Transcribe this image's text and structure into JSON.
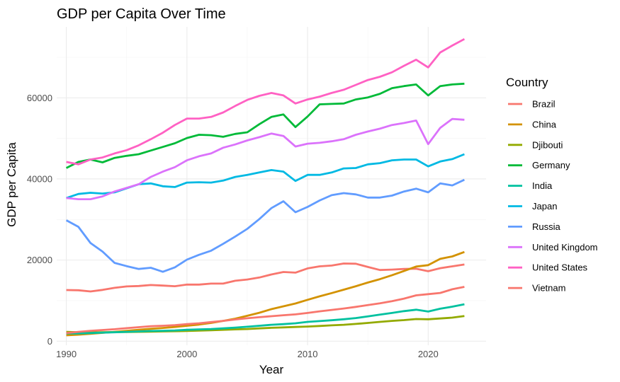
{
  "chart_data": {
    "type": "line",
    "title": "GDP per Capita Over Time",
    "xlabel": "Year",
    "ylabel": "GDP per Capita",
    "xlim": [
      1989.2,
      2024.8
    ],
    "ylim": [
      -1000,
      77500
    ],
    "x_ticks": [
      1990,
      2000,
      2010,
      2020
    ],
    "x_tick_labels": [
      "1990",
      "2000",
      "2010",
      "2020"
    ],
    "y_ticks": [
      0,
      20000,
      40000,
      60000
    ],
    "y_tick_labels": [
      "0",
      "20000",
      "40000",
      "60000"
    ],
    "grid": true,
    "legend_title": "Country",
    "legend_position": "right",
    "x": [
      1990,
      1991,
      1992,
      1993,
      1994,
      1995,
      1996,
      1997,
      1998,
      1999,
      2000,
      2001,
      2002,
      2003,
      2004,
      2005,
      2006,
      2007,
      2008,
      2009,
      2010,
      2011,
      2012,
      2013,
      2014,
      2015,
      2016,
      2017,
      2018,
      2019,
      2020,
      2021,
      2022,
      2023
    ],
    "series": [
      {
        "name": "Brazil",
        "color": "#F8766D",
        "values": [
          12600,
          12550,
          12250,
          12650,
          13150,
          13500,
          13600,
          13850,
          13700,
          13550,
          13950,
          13950,
          14200,
          14200,
          14900,
          15200,
          15700,
          16450,
          17050,
          16900,
          17950,
          18450,
          18650,
          19150,
          19100,
          18300,
          17550,
          17650,
          17800,
          17850,
          17250,
          18000,
          18450,
          18900
        ]
      },
      {
        "name": "China",
        "color": "#D39200",
        "values": [
          1450,
          1600,
          1800,
          2050,
          2300,
          2550,
          2800,
          3050,
          3250,
          3500,
          3800,
          4100,
          4500,
          5000,
          5550,
          6250,
          7000,
          7900,
          8600,
          9300,
          10200,
          11050,
          11850,
          12700,
          13550,
          14450,
          15300,
          16250,
          17300,
          18400,
          18750,
          20300,
          20900,
          22000
        ]
      },
      {
        "name": "Djibouti",
        "color": "#93AA00",
        "values": [
          2300,
          2200,
          2150,
          2200,
          2250,
          2250,
          2300,
          2350,
          2400,
          2450,
          2500,
          2600,
          2700,
          2800,
          2900,
          3000,
          3150,
          3300,
          3400,
          3500,
          3600,
          3750,
          3900,
          4050,
          4250,
          4500,
          4750,
          5000,
          5200,
          5450,
          5400,
          5600,
          5800,
          6200
        ]
      },
      {
        "name": "Germany",
        "color": "#00BA38",
        "values": [
          42700,
          44200,
          44800,
          44100,
          45200,
          45700,
          46100,
          47000,
          47900,
          48800,
          50100,
          50900,
          50800,
          50400,
          51100,
          51500,
          53500,
          55300,
          55900,
          52800,
          55400,
          58400,
          58500,
          58600,
          59600,
          60100,
          61000,
          62400,
          62900,
          63300,
          60600,
          62900,
          63300,
          63500
        ]
      },
      {
        "name": "India",
        "color": "#00C19F",
        "values": [
          1900,
          1900,
          2000,
          2100,
          2200,
          2300,
          2400,
          2500,
          2550,
          2650,
          2800,
          2900,
          3000,
          3150,
          3350,
          3550,
          3800,
          4050,
          4200,
          4400,
          4750,
          4950,
          5150,
          5400,
          5700,
          6100,
          6550,
          6950,
          7400,
          7750,
          7300,
          8000,
          8500,
          9100
        ]
      },
      {
        "name": "Japan",
        "color": "#00B9E3",
        "values": [
          35300,
          36300,
          36600,
          36400,
          36700,
          37700,
          38700,
          38900,
          38200,
          38000,
          39100,
          39200,
          39100,
          39600,
          40500,
          41000,
          41600,
          42200,
          41800,
          39500,
          41000,
          41000,
          41600,
          42600,
          42700,
          43600,
          43900,
          44600,
          44800,
          44800,
          43100,
          44300,
          44900,
          46100
        ]
      },
      {
        "name": "Russia",
        "color": "#619CFF",
        "values": [
          29800,
          28200,
          24200,
          22100,
          19300,
          18500,
          17800,
          18100,
          17100,
          18200,
          20100,
          21300,
          22300,
          24000,
          25800,
          27700,
          30100,
          32800,
          34500,
          31800,
          33100,
          34700,
          36000,
          36500,
          36200,
          35400,
          35400,
          35900,
          36900,
          37600,
          36700,
          38900,
          38400,
          39800
        ]
      },
      {
        "name": "United Kingdom",
        "color": "#DB72FB",
        "values": [
          35300,
          35000,
          35000,
          35700,
          36900,
          37800,
          38700,
          40500,
          41800,
          42900,
          44600,
          45600,
          46300,
          47700,
          48500,
          49500,
          50300,
          51200,
          50600,
          48000,
          48700,
          48900,
          49300,
          49800,
          50900,
          51700,
          52400,
          53300,
          53800,
          54400,
          48600,
          52600,
          54800,
          54600
        ]
      },
      {
        "name": "United States",
        "color": "#FF61C3",
        "values": [
          44200,
          43600,
          44800,
          45300,
          46300,
          47100,
          48300,
          49800,
          51400,
          53300,
          54900,
          54900,
          55300,
          56400,
          58000,
          59500,
          60500,
          61200,
          60600,
          58600,
          59600,
          60300,
          61200,
          62000,
          63200,
          64400,
          65200,
          66300,
          67900,
          69400,
          67500,
          71200,
          72900,
          74500
        ]
      },
      {
        "name": "Vietnam",
        "color": "#F8766D",
        "values": [
          2000,
          2300,
          2550,
          2750,
          2950,
          3200,
          3450,
          3700,
          3800,
          3950,
          4200,
          4400,
          4700,
          5000,
          5350,
          5650,
          5900,
          6150,
          6400,
          6600,
          6950,
          7350,
          7700,
          8050,
          8450,
          8900,
          9350,
          9850,
          10500,
          11300,
          11600,
          11900,
          12800,
          13400
        ]
      }
    ]
  }
}
